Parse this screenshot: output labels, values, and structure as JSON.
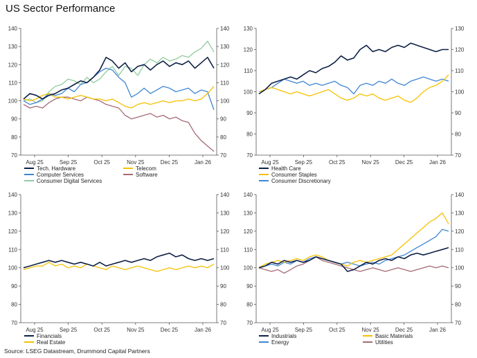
{
  "title": "US Sector Performance",
  "source": "Source: LSEG Datastream, Drummond Capital Partners",
  "chart_data": [
    {
      "type": "line",
      "ylim": [
        70,
        140
      ],
      "yticks": [
        70,
        80,
        90,
        100,
        110,
        120,
        130,
        140
      ],
      "x_ticks": [
        "Aug 25",
        "Sep 25",
        "Oct 25",
        "Nov 25",
        "Dec 25",
        "Jan 26"
      ],
      "series": [
        {
          "name": "Tech. Hardware",
          "color": "#0d1f45",
          "values": [
            101,
            104,
            103,
            101,
            103,
            104,
            106,
            107,
            109,
            111,
            110,
            113,
            117,
            124,
            122,
            118,
            121,
            116,
            119,
            120,
            117,
            120,
            122,
            119,
            121,
            120,
            122,
            118,
            121,
            124,
            118
          ]
        },
        {
          "name": "Telecom",
          "color": "#f5c000",
          "values": [
            101,
            100,
            101,
            103,
            104,
            102,
            102,
            101,
            102,
            103,
            102,
            101,
            101,
            100,
            101,
            99,
            97,
            96,
            98,
            99,
            98,
            99,
            100,
            99,
            100,
            100,
            101,
            100,
            101,
            104,
            108
          ]
        },
        {
          "name": "Computer Services",
          "color": "#3f86d2",
          "values": [
            100,
            98,
            99,
            101,
            104,
            103,
            104,
            107,
            105,
            109,
            110,
            113,
            116,
            118,
            117,
            113,
            110,
            102,
            104,
            107,
            104,
            106,
            108,
            107,
            105,
            106,
            107,
            104,
            106,
            105,
            95
          ]
        },
        {
          "name": "Software",
          "color": "#a46a74",
          "values": [
            98,
            96,
            97,
            96,
            99,
            101,
            102,
            102,
            101,
            100,
            102,
            101,
            100,
            98,
            97,
            96,
            92,
            90,
            91,
            92,
            93,
            91,
            92,
            90,
            91,
            89,
            88,
            82,
            78,
            75,
            72
          ]
        },
        {
          "name": "Consumer Digital Services",
          "color": "#8fcc9d",
          "values": [
            100,
            101,
            99,
            100,
            105,
            108,
            109,
            112,
            111,
            109,
            113,
            110,
            112,
            116,
            119,
            114,
            119,
            118,
            114,
            120,
            123,
            121,
            124,
            122,
            123,
            125,
            124,
            127,
            129,
            133,
            127
          ]
        }
      ]
    },
    {
      "type": "line",
      "ylim": [
        70,
        130
      ],
      "yticks": [
        70,
        80,
        90,
        100,
        110,
        120,
        130
      ],
      "x_ticks": [
        "Aug 25",
        "Sep 25",
        "Oct 25",
        "Nov 25",
        "Dec 25",
        "Jan 26"
      ],
      "series": [
        {
          "name": "Health Care",
          "color": "#0d1f45",
          "values": [
            99,
            101,
            104,
            105,
            106,
            107,
            106,
            108,
            110,
            109,
            111,
            112,
            114,
            117,
            115,
            116,
            120,
            122,
            119,
            120,
            119,
            121,
            122,
            121,
            123,
            122,
            121,
            120,
            119,
            120,
            120
          ]
        },
        {
          "name": "Consumer Staples",
          "color": "#f5c000",
          "values": [
            100,
            101,
            102,
            101,
            100,
            99,
            100,
            99,
            98,
            99,
            100,
            101,
            99,
            97,
            96,
            97,
            99,
            98,
            99,
            97,
            96,
            97,
            98,
            96,
            95,
            97,
            100,
            102,
            103,
            105,
            108
          ]
        },
        {
          "name": "Consumer Discretionary",
          "color": "#3f86d2",
          "values": [
            100,
            101,
            102,
            104,
            106,
            105,
            104,
            105,
            103,
            104,
            103,
            104,
            105,
            103,
            102,
            99,
            103,
            104,
            103,
            105,
            104,
            106,
            104,
            103,
            105,
            106,
            107,
            106,
            105,
            106,
            105
          ]
        }
      ]
    },
    {
      "type": "line",
      "ylim": [
        70,
        140
      ],
      "yticks": [
        70,
        80,
        90,
        100,
        110,
        120,
        130,
        140
      ],
      "x_ticks": [
        "Aug 25",
        "Sep 25",
        "Oct 25",
        "Nov 25",
        "Dec 25",
        "Jan 26"
      ],
      "series": [
        {
          "name": "Financials",
          "color": "#0d1f45",
          "values": [
            100,
            101,
            102,
            103,
            104,
            103,
            104,
            103,
            102,
            103,
            102,
            101,
            103,
            101,
            102,
            103,
            104,
            103,
            104,
            105,
            104,
            106,
            107,
            108,
            106,
            107,
            105,
            104,
            105,
            104,
            105
          ]
        },
        {
          "name": "Real Estate",
          "color": "#f5c000",
          "values": [
            99,
            100,
            101,
            101,
            103,
            101,
            102,
            100,
            101,
            100,
            102,
            101,
            100,
            99,
            101,
            100,
            99,
            100,
            101,
            100,
            99,
            98,
            99,
            100,
            99,
            100,
            101,
            100,
            101,
            100,
            102
          ]
        }
      ]
    },
    {
      "type": "line",
      "ylim": [
        70,
        140
      ],
      "yticks": [
        70,
        80,
        90,
        100,
        110,
        120,
        130,
        140
      ],
      "x_ticks": [
        "Aug 25",
        "Sep 25",
        "Oct 25",
        "Nov 25",
        "Dec 25",
        "Jan 26"
      ],
      "series": [
        {
          "name": "Industrials",
          "color": "#0d1f45",
          "values": [
            100,
            101,
            103,
            102,
            104,
            103,
            104,
            103,
            104,
            106,
            105,
            104,
            103,
            102,
            98,
            99,
            101,
            103,
            102,
            104,
            105,
            104,
            106,
            105,
            107,
            108,
            107,
            108,
            109,
            110,
            111
          ]
        },
        {
          "name": "Basic Materials",
          "color": "#f5c000",
          "values": [
            100,
            102,
            103,
            104,
            103,
            104,
            105,
            104,
            106,
            107,
            106,
            104,
            103,
            102,
            101,
            103,
            104,
            103,
            104,
            105,
            106,
            107,
            110,
            113,
            116,
            119,
            122,
            125,
            127,
            130,
            124
          ]
        },
        {
          "name": "Energy",
          "color": "#3f86d2",
          "values": [
            100,
            101,
            102,
            101,
            103,
            102,
            104,
            103,
            105,
            106,
            105,
            104,
            103,
            102,
            103,
            102,
            101,
            102,
            103,
            102,
            104,
            105,
            106,
            107,
            109,
            111,
            113,
            115,
            117,
            121,
            120
          ]
        },
        {
          "name": "Utilities",
          "color": "#a46a74",
          "values": [
            100,
            99,
            98,
            99,
            97,
            99,
            101,
            102,
            104,
            106,
            104,
            103,
            102,
            101,
            100,
            99,
            98,
            99,
            100,
            99,
            98,
            99,
            100,
            99,
            98,
            99,
            100,
            101,
            100,
            101,
            100
          ]
        }
      ]
    }
  ]
}
